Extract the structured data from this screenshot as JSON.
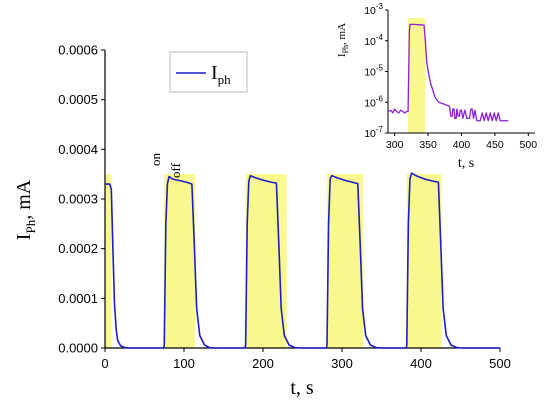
{
  "chart_data": [
    {
      "type": "line",
      "xlabel": "t, s",
      "ylabel_main": "I",
      "ylabel_sub": "Ph",
      "ylabel_tail": ", mA",
      "xlim": [
        0,
        500
      ],
      "ylim": [
        0,
        0.0006
      ],
      "xticks": [
        "0",
        "100",
        "200",
        "300",
        "400",
        "500"
      ],
      "yticks": [
        "0.0000",
        "0.0001",
        "0.0002",
        "0.0003",
        "0.0004",
        "0.0005",
        "0.0006"
      ],
      "legend": {
        "main": "I",
        "sub": "ph",
        "placement": "top-center"
      },
      "annotations": [
        "on",
        "off"
      ],
      "colors": {
        "line": "#1c1ccc",
        "highlight": "#f5f56a",
        "highlight_opacity": 0.75
      },
      "highlight_intervals": [
        [
          0,
          8
        ],
        [
          75,
          114
        ],
        [
          178,
          230
        ],
        [
          281,
          327
        ],
        [
          382,
          426
        ]
      ],
      "series": [
        {
          "points": [
            [
              0,
              0.00033
            ],
            [
              3,
              0.00033
            ],
            [
              6,
              0.00033
            ],
            [
              8,
              0.00032
            ],
            [
              10,
              0.0002
            ],
            [
              12,
              9e-05
            ],
            [
              14,
              4e-05
            ],
            [
              16,
              1.5e-05
            ],
            [
              20,
              4e-06
            ],
            [
              25,
              1e-06
            ],
            [
              30,
              0
            ],
            [
              74,
              0
            ],
            [
              75,
              5e-06
            ],
            [
              77,
              0.00025
            ],
            [
              79,
              0.00033
            ],
            [
              81,
              0.000345
            ],
            [
              86,
              0.00034
            ],
            [
              95,
              0.000337
            ],
            [
              105,
              0.000333
            ],
            [
              110,
              0.00033
            ],
            [
              113,
              0.00021
            ],
            [
              116,
              8e-05
            ],
            [
              120,
              2.5e-05
            ],
            [
              126,
              6e-06
            ],
            [
              132,
              1e-06
            ],
            [
              140,
              0
            ],
            [
              177,
              0
            ],
            [
              178,
              5e-06
            ],
            [
              180,
              0.00025
            ],
            [
              182,
              0.000335
            ],
            [
              184,
              0.000347
            ],
            [
              190,
              0.000343
            ],
            [
              200,
              0.000338
            ],
            [
              210,
              0.000334
            ],
            [
              217,
              0.000332
            ],
            [
              220,
              0.00021
            ],
            [
              223,
              8e-05
            ],
            [
              227,
              2.5e-05
            ],
            [
              233,
              6e-06
            ],
            [
              240,
              1e-06
            ],
            [
              248,
              0
            ],
            [
              280,
              0
            ],
            [
              281,
              5e-06
            ],
            [
              283,
              0.00025
            ],
            [
              285,
              0.00034
            ],
            [
              287,
              0.000347
            ],
            [
              295,
              0.000342
            ],
            [
              305,
              0.000337
            ],
            [
              315,
              0.000333
            ],
            [
              320,
              0.000331
            ],
            [
              323,
              0.00021
            ],
            [
              326,
              8e-05
            ],
            [
              330,
              2.5e-05
            ],
            [
              336,
              6e-06
            ],
            [
              343,
              1e-06
            ],
            [
              350,
              0
            ],
            [
              381,
              0
            ],
            [
              382,
              5e-06
            ],
            [
              384,
              0.00025
            ],
            [
              386,
              0.00034
            ],
            [
              388,
              0.000352
            ],
            [
              395,
              0.000346
            ],
            [
              405,
              0.00034
            ],
            [
              415,
              0.000336
            ],
            [
              422,
              0.000334
            ],
            [
              425,
              0.00021
            ],
            [
              428,
              8e-05
            ],
            [
              432,
              2.5e-05
            ],
            [
              438,
              6e-06
            ],
            [
              445,
              1e-06
            ],
            [
              452,
              0
            ],
            [
              500,
              0
            ]
          ]
        }
      ]
    },
    {
      "type": "line",
      "scale_y": "log",
      "xlabel": "t, s",
      "ylabel_main": "I",
      "ylabel_sub": "Ph",
      "ylabel_tail": ", mA",
      "xlim": [
        290,
        510
      ],
      "ylim": [
        1e-07,
        0.001
      ],
      "xticks": [
        "300",
        "350",
        "400",
        "450",
        "500"
      ],
      "yticks": [
        "10^-7",
        "10^-6",
        "10^-5",
        "10^-4",
        "10^-3"
      ],
      "colors": {
        "line": "#8a1fd6",
        "highlight": "#f5f56a",
        "highlight_opacity": 0.75
      },
      "highlight_intervals": [
        [
          320,
          346
        ]
      ],
      "series": [
        {
          "points": [
            [
              290,
              5e-07
            ],
            [
              294,
              5.5e-07
            ],
            [
              297,
              4.5e-07
            ],
            [
              300,
              6e-07
            ],
            [
              303,
              5e-07
            ],
            [
              306,
              4.5e-07
            ],
            [
              309,
              5.5e-07
            ],
            [
              312,
              5e-07
            ],
            [
              315,
              4.5e-07
            ],
            [
              318,
              5e-07
            ],
            [
              320,
              5e-07
            ],
            [
              321,
              1e-05
            ],
            [
              322,
              0.0002
            ],
            [
              323,
              0.00034
            ],
            [
              330,
              0.00034
            ],
            [
              336,
              0.00033
            ],
            [
              340,
              0.00033
            ],
            [
              344,
              0.00032
            ],
            [
              346,
              9e-05
            ],
            [
              348,
              2e-05
            ],
            [
              351,
              8e-06
            ],
            [
              354,
              4e-06
            ],
            [
              357,
              2.5e-06
            ],
            [
              360,
              1.5e-06
            ],
            [
              363,
              1.2e-06
            ],
            [
              366,
              1e-06
            ],
            [
              372,
              9e-07
            ],
            [
              378,
              8e-07
            ],
            [
              382,
              7.5e-07
            ],
            [
              384,
              3.5e-07
            ],
            [
              386,
              3.5e-07
            ],
            [
              387,
              6e-07
            ],
            [
              389,
              6e-07
            ],
            [
              390,
              3e-07
            ],
            [
              392,
              3e-07
            ],
            [
              393,
              6e-07
            ],
            [
              395,
              3.5e-07
            ],
            [
              397,
              3.5e-07
            ],
            [
              398,
              5.5e-07
            ],
            [
              400,
              5.5e-07
            ],
            [
              402,
              3e-07
            ],
            [
              405,
              5.5e-07
            ],
            [
              408,
              3e-07
            ],
            [
              412,
              3e-07
            ],
            [
              414,
              6e-07
            ],
            [
              416,
              6e-07
            ],
            [
              418,
              3e-07
            ],
            [
              420,
              5.5e-07
            ],
            [
              423,
              2.5e-07
            ],
            [
              428,
              2.5e-07
            ],
            [
              431,
              4.5e-07
            ],
            [
              434,
              2.5e-07
            ],
            [
              437,
              4.5e-07
            ],
            [
              440,
              2.5e-07
            ],
            [
              443,
              4.5e-07
            ],
            [
              446,
              2.5e-07
            ],
            [
              449,
              4.5e-07
            ],
            [
              452,
              2.5e-07
            ],
            [
              455,
              4.5e-07
            ],
            [
              458,
              2.5e-07
            ],
            [
              462,
              2.5e-07
            ],
            [
              466,
              2.5e-07
            ],
            [
              470,
              2.5e-07
            ]
          ]
        }
      ]
    }
  ]
}
